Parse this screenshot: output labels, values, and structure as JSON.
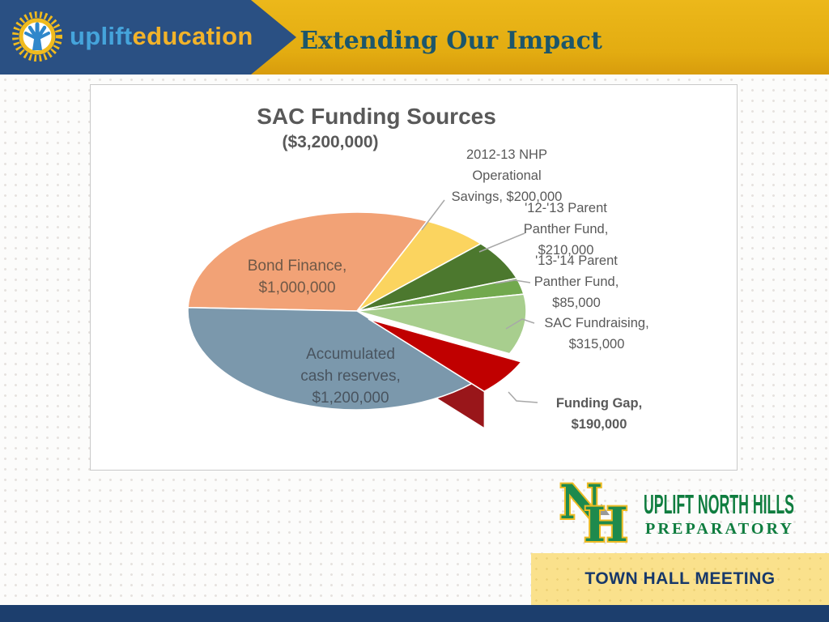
{
  "header": {
    "brand_word1": "uplift",
    "brand_word2": "education",
    "slide_title": "Extending Our Impact"
  },
  "chart": {
    "title": "SAC Funding Sources",
    "subtitle": "($3,200,000)"
  },
  "chart_data": {
    "type": "pie",
    "title": "SAC Funding Sources ($3,200,000)",
    "total": 3200000,
    "start_angle_deg": 272,
    "style": "3d-exploded",
    "slices": [
      {
        "name": "Bond Finance",
        "value": 1000000,
        "color": "#F2A276",
        "label_lines": [
          "Bond Finance,",
          "$1,000,000"
        ],
        "label_placement": "inside"
      },
      {
        "name": "2012-13 NHP Operational Savings",
        "value": 200000,
        "color": "#FBD45F",
        "label_lines": [
          "2012-13 NHP",
          "Operational",
          "Savings, $200,000"
        ],
        "label_placement": "outside"
      },
      {
        "name": "'12-'13 Parent Panther Fund",
        "value": 210000,
        "color": "#4C782E",
        "label_lines": [
          "'12-'13 Parent",
          "Panther Fund,",
          "$210,000"
        ],
        "label_placement": "outside"
      },
      {
        "name": "'13-'14 Parent Panther Fund",
        "value": 85000,
        "color": "#72A94E",
        "label_lines": [
          "'13-'14 Parent",
          "Panther Fund,",
          "$85,000"
        ],
        "label_placement": "outside"
      },
      {
        "name": "SAC Fundraising",
        "value": 315000,
        "color": "#A8CE8E",
        "label_lines": [
          "SAC Fundraising,",
          "$315,000"
        ],
        "label_placement": "outside"
      },
      {
        "name": "Funding Gap",
        "value": 190000,
        "color": "#C00000",
        "label_lines": [
          "Funding Gap,",
          "$190,000"
        ],
        "label_placement": "outside",
        "exploded": true,
        "bold_label": true
      },
      {
        "name": "Accumulated cash reserves",
        "value": 1200000,
        "color": "#7B98AC",
        "label_lines": [
          "Accumulated",
          "cash reserves,",
          "$1,200,000"
        ],
        "label_placement": "inside"
      }
    ]
  },
  "footer": {
    "monogram_n": "N",
    "monogram_h": "H",
    "school_line1": "UPLIFT NORTH HILLS",
    "school_line2": "PREPARATORY",
    "banner": "TOWN HALL MEETING"
  }
}
